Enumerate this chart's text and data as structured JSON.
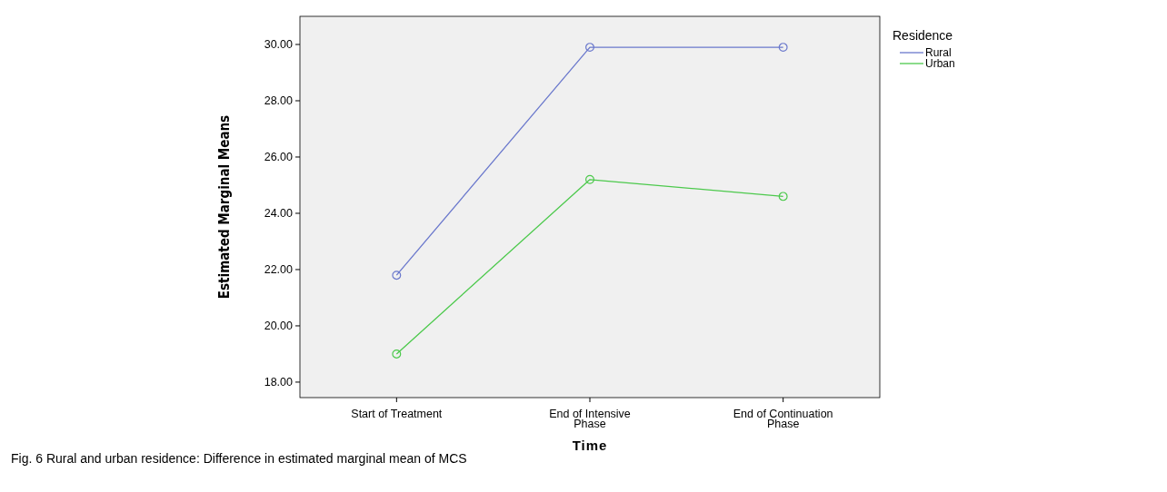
{
  "chart_data": {
    "type": "line",
    "ylabel": "Estimated Marginal Means",
    "xlabel": "Time",
    "legend_title": "Residence",
    "legend": "top right",
    "marker": "circle",
    "line_style": "solid",
    "categories": [
      "Start of Treatment",
      "End of Intensive Phase",
      "End of Continuation Phase"
    ],
    "series": [
      {
        "name": "Rural",
        "color": "#6a78cc",
        "values": [
          21.8,
          29.9,
          29.9
        ]
      },
      {
        "name": "Urban",
        "color": "#4cc94c",
        "values": [
          19.0,
          25.2,
          24.6
        ]
      }
    ],
    "ylim": [
      17.45,
      31.0
    ],
    "yticks": [
      {
        "value": 18,
        "label": "18.00"
      },
      {
        "value": 20,
        "label": "20.00"
      },
      {
        "value": 22,
        "label": "22.00"
      },
      {
        "value": 24,
        "label": "24.00"
      },
      {
        "value": 26,
        "label": "26.00"
      },
      {
        "value": 28,
        "label": "28.00"
      },
      {
        "value": 30,
        "label": "30.00"
      }
    ],
    "annotations": [
      "Fig. 6 Rural and urban residence: Difference in estimated marginal mean of MCS"
    ]
  }
}
